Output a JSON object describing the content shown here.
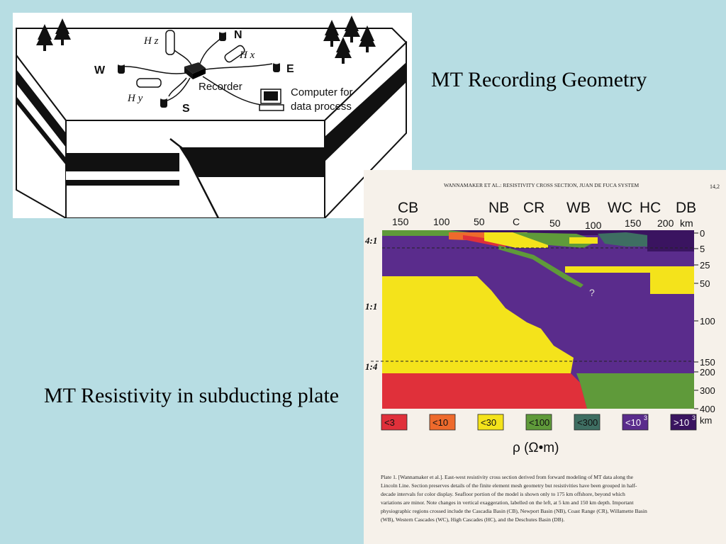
{
  "slide": {
    "title_top": "MT Recording Geometry",
    "title_bottom": "MT Resistivity in subducting plate",
    "background_color": "#b7dde3"
  },
  "diagram": {
    "labels": {
      "hz": "H z",
      "hx": "H x",
      "hy": "H y",
      "n": "N",
      "e": "E",
      "w": "W",
      "s": "S",
      "recorder": "Recorder",
      "computer_line1": "Computer for",
      "computer_line2": "data process"
    },
    "icons": [
      "tree-icon",
      "electrode-icon",
      "magnetometer-icon",
      "recorder-icon",
      "computer-icon"
    ]
  },
  "figure": {
    "header": "WANNAMAKER ET AL.: RESISTIVITY CROSS SECTION, JUAN DE FUCA SYSTEM",
    "page_number": "14,2",
    "regions": [
      "CB",
      "NB",
      "CR",
      "WB",
      "WC",
      "HC",
      "DB"
    ],
    "distance_labels": [
      "150",
      "100",
      "50",
      "C",
      "50",
      "100",
      "150",
      "200",
      "km"
    ],
    "depth_labels": [
      "0",
      "5",
      "25",
      "50",
      "100",
      "150",
      "200",
      "300",
      "400"
    ],
    "depth_unit": "km",
    "exaggeration_labels": [
      "4:1",
      "1:1",
      "1:4"
    ],
    "question_mark": "?",
    "legend": [
      {
        "label": "<3",
        "color": "#e0303a"
      },
      {
        "label": "<10",
        "color": "#ee6a2c"
      },
      {
        "label": "<30",
        "color": "#f4e31b"
      },
      {
        "label": "<100",
        "color": "#5f9a3a"
      },
      {
        "label": "<300",
        "color": "#3e6e62"
      },
      {
        "label": "<10",
        "sup": "3",
        "color": "#5a2c8c"
      },
      {
        "label": ">10",
        "sup": "3",
        "color": "#3a1460"
      }
    ],
    "units": "ρ (Ω•m)",
    "caption_lines": [
      "Plate 1.   [Wannamaker et al.]. East-west resistivity cross section derived from forward modeling of MT data along the",
      "Lincoln Line.  Section preserves details of the finite element mesh geometry but resistivities have been grouped in half-",
      "decade intervals for color display.  Seafloor portion of the model is shown only to 175 km offshore, beyond which",
      "variations are minor.  Note changes in vertical exaggeration, labelled on the left, at 5 km and 150 km depth.  Important",
      "physiographic regions crossed include the Cascadia Basin (CB), Newport Basin (NB), Coast Range (CR), Willamette Basin",
      "(WB), Western Cascades (WC), High Cascades (HC), and the Deschutes Basin (DB)."
    ]
  }
}
